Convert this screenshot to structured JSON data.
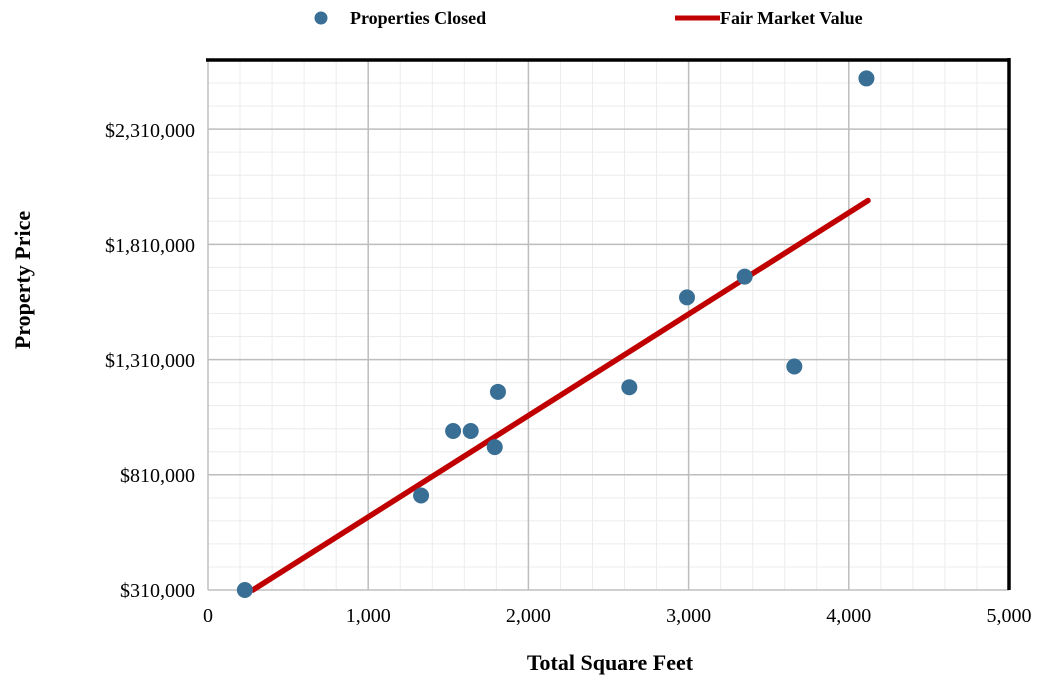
{
  "chart_data": {
    "type": "scatter",
    "title": "",
    "xlabel": "Total Square Feet",
    "ylabel": "Property Price",
    "xlim": [
      0,
      5000
    ],
    "ylim": [
      310000,
      2610000
    ],
    "x_ticks": [
      "0",
      "1,000",
      "2,000",
      "3,000",
      "4,000",
      "5,000"
    ],
    "y_ticks": [
      "$310,000",
      "$810,000",
      "$1,310,000",
      "$1,810,000",
      "$2,310,000"
    ],
    "grid": true,
    "legend_position": "top",
    "series": [
      {
        "name": "Properties Closed",
        "kind": "scatter",
        "color": "#3a6f95",
        "points": [
          {
            "x": 230,
            "y": 310000
          },
          {
            "x": 1330,
            "y": 720000
          },
          {
            "x": 1530,
            "y": 1000000
          },
          {
            "x": 1640,
            "y": 1000000
          },
          {
            "x": 1790,
            "y": 930000
          },
          {
            "x": 1810,
            "y": 1170000
          },
          {
            "x": 2630,
            "y": 1190000
          },
          {
            "x": 2990,
            "y": 1580000
          },
          {
            "x": 3350,
            "y": 1670000
          },
          {
            "x": 3660,
            "y": 1280000
          },
          {
            "x": 4110,
            "y": 2530000
          }
        ]
      },
      {
        "name": "Fair Market Value",
        "kind": "line",
        "color": "#c00000",
        "points": [
          {
            "x": 280,
            "y": 310000
          },
          {
            "x": 4120,
            "y": 2000000
          }
        ]
      }
    ]
  }
}
